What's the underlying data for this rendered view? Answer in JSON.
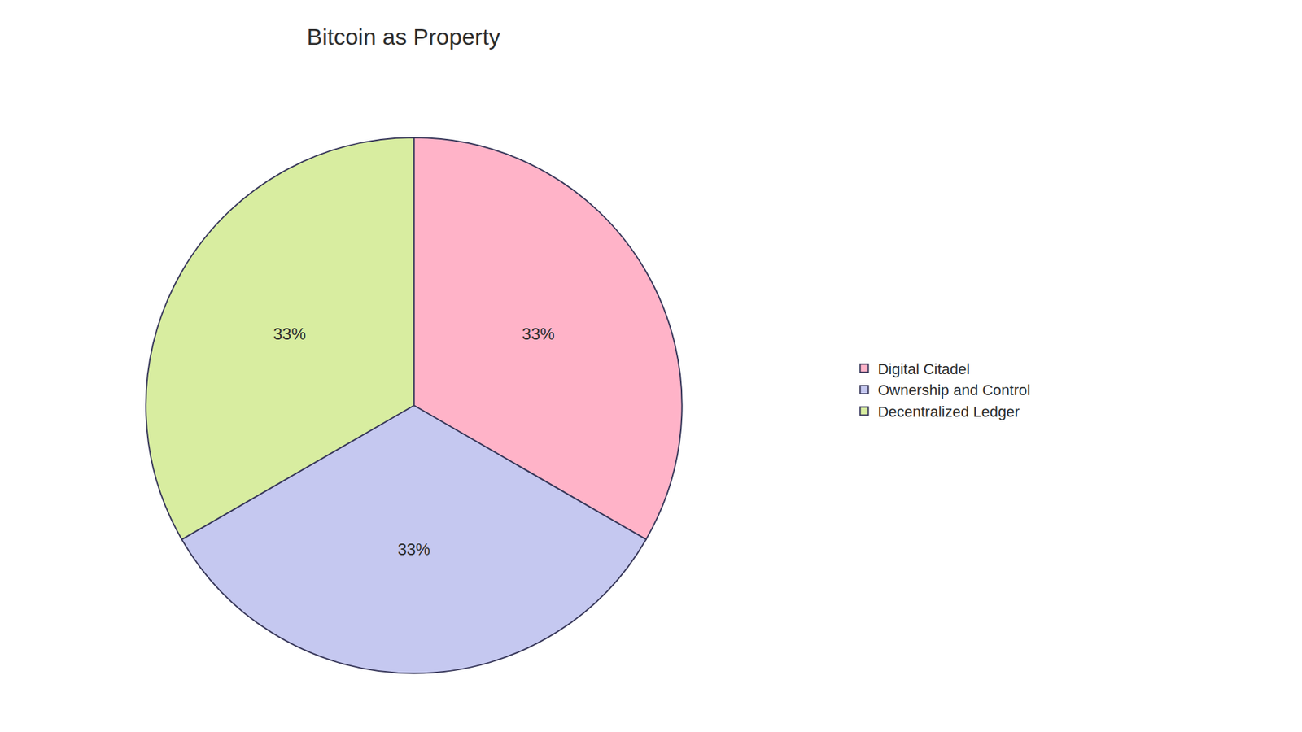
{
  "chart_data": {
    "type": "pie",
    "title": "Bitcoin as Property",
    "categories": [
      "Digital Citadel",
      "Ownership and Control",
      "Decentralized Ledger"
    ],
    "values": [
      33,
      33,
      33
    ],
    "value_labels": [
      "33%",
      "33%",
      "33%"
    ],
    "colors": [
      "#FFB3C8",
      "#C5C8F0",
      "#D8EDA0"
    ],
    "data_labels": true,
    "legend": "right"
  }
}
